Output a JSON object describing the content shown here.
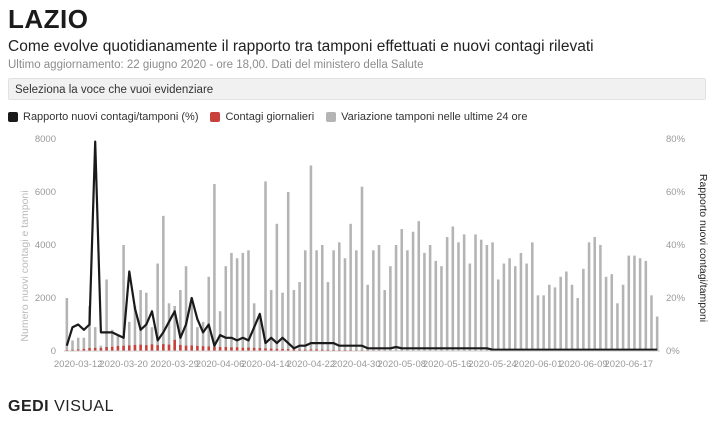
{
  "header": {
    "title": "LAZIO",
    "subtitle": "Come evolve quotidianamente il rapporto tra tamponi effettuati e nuovi contagi rilevati",
    "updated": "Ultimo aggiornamento: 22 giugno 2020 - ore 18,00. Dati del ministero della Salute"
  },
  "selector": {
    "label": "Seleziona la voce che vuoi evidenziare"
  },
  "legend": [
    {
      "label": "Rapporto nuovi contagi/tamponi (%)",
      "color": "#1a1a1a"
    },
    {
      "label": "Contagi giornalieri",
      "color": "#c9413b"
    },
    {
      "label": "Variazione tamponi nelle ultime 24 ore",
      "color": "#b4b4b4"
    }
  ],
  "footer": {
    "brand_bold": "GEDI",
    "brand_rest": " VISUAL"
  },
  "chart_data": {
    "type": "bar",
    "x_start": "2020-03-10",
    "x_tick_labels": [
      "2020-03-12",
      "2020-03-20",
      "2020-03-29",
      "2020-04-06",
      "2020-04-14",
      "2020-04-22",
      "2020-04-30",
      "2020-05-08",
      "2020-05-16",
      "2020-05-24",
      "2020-06-01",
      "2020-06-09",
      "2020-06-17"
    ],
    "y_left": {
      "label": "Numero nuovi contagi e tamponi",
      "ticks": [
        "0",
        "2000",
        "4000",
        "6000",
        "8000"
      ],
      "lim": [
        0,
        8000
      ]
    },
    "y_right": {
      "label": "Rapporto nuovi contagi/tamponi",
      "ticks": [
        "0%",
        "20%",
        "40%",
        "60%",
        "80%"
      ],
      "lim": [
        0,
        80
      ]
    },
    "series": [
      {
        "name": "Variazione tamponi nelle ultime 24 ore",
        "kind": "bar",
        "color": "#b4b4b4",
        "values": [
          2000,
          400,
          500,
          500,
          1700,
          900,
          200,
          2700,
          800,
          600,
          4000,
          1100,
          1700,
          2300,
          2200,
          900,
          3300,
          5100,
          1800,
          1700,
          2300,
          3200,
          2000,
          900,
          1100,
          2800,
          6300,
          1500,
          3200,
          3700,
          3500,
          3700,
          3800,
          1800,
          1400,
          6400,
          2300,
          4800,
          2200,
          6000,
          2300,
          2600,
          3800,
          7000,
          3800,
          4000,
          2600,
          3800,
          4100,
          3500,
          4800,
          3800,
          6200,
          2500,
          3800,
          4000,
          2300,
          3200,
          4000,
          4600,
          3800,
          4500,
          4900,
          3700,
          4000,
          3400,
          3200,
          4300,
          4700,
          4100,
          4400,
          3300,
          4400,
          4200,
          4000,
          4100,
          2700,
          3300,
          3500,
          3200,
          3700,
          3300,
          4100,
          2100,
          2100,
          2500,
          2400,
          2800,
          3000,
          2500,
          2000,
          3100,
          4100,
          4300,
          4000,
          2800,
          2900,
          1800,
          2500,
          3600,
          3600,
          3500,
          3400,
          2100,
          1300
        ]
      },
      {
        "name": "Contagi giornalieri",
        "kind": "bar",
        "color": "#c9413b",
        "values": [
          40,
          45,
          60,
          80,
          110,
          120,
          110,
          150,
          160,
          190,
          200,
          210,
          230,
          240,
          220,
          250,
          220,
          260,
          240,
          420,
          230,
          200,
          210,
          190,
          180,
          170,
          160,
          150,
          150,
          140,
          140,
          120,
          130,
          120,
          110,
          100,
          90,
          80,
          80,
          70,
          60,
          55,
          50,
          55,
          60,
          50,
          45,
          40,
          40,
          35,
          35,
          30,
          30,
          28,
          25,
          25,
          20,
          20,
          18,
          18,
          16,
          16,
          15,
          14,
          14,
          12,
          12,
          12,
          10,
          10,
          10,
          10,
          10,
          9,
          9,
          9,
          8,
          8,
          8,
          8,
          8,
          8,
          8,
          8,
          8,
          8,
          8,
          8,
          8,
          8,
          8,
          8,
          8,
          8,
          8,
          8,
          8,
          8,
          8,
          8,
          8,
          8,
          8,
          8,
          8
        ]
      },
      {
        "name": "Rapporto nuovi contagi/tamponi (%)",
        "kind": "line",
        "color": "#1a1a1a",
        "values": [
          2,
          9,
          10,
          8,
          10,
          79,
          7,
          7,
          7,
          6,
          5,
          30,
          16,
          8,
          10,
          15,
          4,
          7,
          11,
          15,
          5,
          10,
          20,
          12,
          7,
          10,
          2,
          6,
          5,
          5,
          4,
          5,
          4,
          9,
          14,
          3,
          5,
          3,
          5,
          3,
          1,
          2,
          2,
          3,
          3,
          3,
          3,
          3,
          2,
          2,
          2,
          2,
          2,
          1,
          1,
          1,
          1,
          1,
          1.5,
          1,
          1,
          1,
          1,
          1,
          1,
          1,
          1,
          1,
          1,
          1,
          1,
          1,
          1,
          1,
          1,
          0.5,
          0.5,
          0.5,
          0.5,
          0.5,
          0.5,
          0.5,
          0.5,
          0.5,
          0.5,
          0.5,
          0.5,
          0.5,
          0.5,
          0.5,
          0.5,
          0.5,
          0.5,
          0.5,
          0.5,
          0.5,
          0.5,
          0.5,
          0.5,
          0.5,
          0.5,
          0.5,
          0.5,
          0.5,
          0.5
        ]
      }
    ],
    "grid": false
  }
}
